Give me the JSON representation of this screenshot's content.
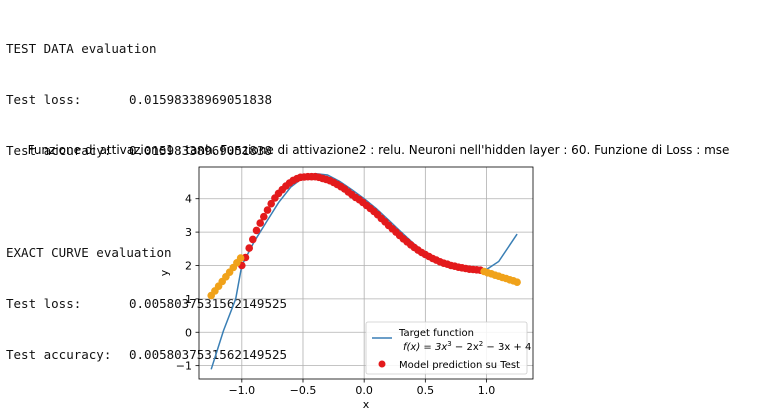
{
  "output": {
    "test_header": "TEST DATA evaluation",
    "test_loss_label": "Test loss:",
    "test_loss_value": "0.01598338969051838",
    "test_acc_label": "Test accuracy:",
    "test_acc_value": "0.01598338969051838",
    "exact_header": "EXACT CURVE evaluation",
    "exact_loss_label": "Test loss:",
    "exact_loss_value": "0.0058037531562149525",
    "exact_acc_label": "Test accuracy:",
    "exact_acc_value": "0.0058037531562149525"
  },
  "chart_data": {
    "type": "line",
    "title": "Funzione di attivazione1 : tanh. Funzione di attivazione2 : relu. Neuroni nell'hidden layer : 60. Funzione di Loss : mse",
    "xlabel": "x",
    "ylabel": "y",
    "xlim": [
      -1.35,
      1.38
    ],
    "ylim": [
      -1.4,
      4.95
    ],
    "xticks": [
      -1.0,
      -0.5,
      0.0,
      0.5,
      1.0
    ],
    "xtick_labels": [
      "−1.0",
      "−0.5",
      "0.0",
      "0.5",
      "1.0"
    ],
    "yticks": [
      -1,
      0,
      1,
      2,
      3,
      4
    ],
    "ytick_labels": [
      "−1",
      "0",
      "1",
      "2",
      "3",
      "4"
    ],
    "grid": true,
    "legend_position": "lower right",
    "legend": {
      "line_label": "Target function",
      "formula_prefix": "f(x) = 3x",
      "formula_mid1": " − 2x",
      "formula_suffix": " − 3x + 4",
      "exp1": "3",
      "exp2": "2",
      "scatter_label": "Model prediction su Test"
    },
    "series": [
      {
        "name": "Target function",
        "kind": "line",
        "color": "#3a7fb5",
        "x": [
          -1.25,
          -1.15,
          -1.05,
          -1.0,
          -0.9,
          -0.8,
          -0.7,
          -0.6,
          -0.5,
          -0.4,
          -0.3,
          -0.2,
          -0.1,
          0.0,
          0.1,
          0.2,
          0.3,
          0.4,
          0.5,
          0.6,
          0.7,
          0.8,
          0.9,
          1.0,
          1.1,
          1.25
        ],
        "y": [
          -1.11,
          0.05,
          1.0,
          2.0,
          2.71,
          3.3,
          3.88,
          4.35,
          4.63,
          4.75,
          4.71,
          4.52,
          4.27,
          4.0,
          3.7,
          3.36,
          3.01,
          2.67,
          2.38,
          2.15,
          1.97,
          1.86,
          1.84,
          1.88,
          2.12,
          2.94
        ]
      },
      {
        "name": "Model prediction su Test",
        "kind": "scatter",
        "color": "#e31a1c",
        "x": [
          -1.0,
          -0.97,
          -0.94,
          -0.91,
          -0.88,
          -0.85,
          -0.82,
          -0.79,
          -0.76,
          -0.73,
          -0.7,
          -0.67,
          -0.64,
          -0.61,
          -0.58,
          -0.55,
          -0.52,
          -0.49,
          -0.46,
          -0.43,
          -0.4,
          -0.37,
          -0.34,
          -0.31,
          -0.28,
          -0.25,
          -0.22,
          -0.19,
          -0.16,
          -0.13,
          -0.1,
          -0.07,
          -0.04,
          -0.01,
          0.02,
          0.05,
          0.08,
          0.11,
          0.14,
          0.17,
          0.2,
          0.23,
          0.26,
          0.29,
          0.32,
          0.35,
          0.38,
          0.41,
          0.44,
          0.47,
          0.5,
          0.53,
          0.56,
          0.59,
          0.62,
          0.65,
          0.68,
          0.71,
          0.74,
          0.77,
          0.8,
          0.83,
          0.86,
          0.89,
          0.92,
          0.95
        ],
        "y": [
          2.0,
          2.24,
          2.52,
          2.78,
          3.05,
          3.27,
          3.46,
          3.66,
          3.85,
          4.02,
          4.16,
          4.27,
          4.38,
          4.47,
          4.55,
          4.6,
          4.64,
          4.65,
          4.66,
          4.66,
          4.66,
          4.64,
          4.61,
          4.58,
          4.54,
          4.49,
          4.43,
          4.36,
          4.29,
          4.2,
          4.12,
          4.04,
          3.97,
          3.89,
          3.8,
          3.71,
          3.62,
          3.52,
          3.41,
          3.31,
          3.2,
          3.1,
          3.0,
          2.9,
          2.8,
          2.71,
          2.62,
          2.54,
          2.46,
          2.39,
          2.33,
          2.27,
          2.21,
          2.16,
          2.11,
          2.07,
          2.04,
          2.0,
          1.98,
          1.95,
          1.93,
          1.91,
          1.89,
          1.88,
          1.87,
          1.86
        ]
      },
      {
        "name": "",
        "kind": "scatter",
        "color": "#f0a21a",
        "x": [
          -1.25,
          -1.22,
          -1.19,
          -1.16,
          -1.13,
          -1.1,
          -1.07,
          -1.04,
          -1.01,
          0.98,
          1.01,
          1.04,
          1.07,
          1.1,
          1.13,
          1.16,
          1.19,
          1.22,
          1.25
        ],
        "y": [
          1.1,
          1.24,
          1.38,
          1.52,
          1.66,
          1.8,
          1.94,
          2.08,
          2.22,
          1.82,
          1.78,
          1.75,
          1.71,
          1.68,
          1.64,
          1.61,
          1.57,
          1.54,
          1.5
        ]
      }
    ]
  }
}
